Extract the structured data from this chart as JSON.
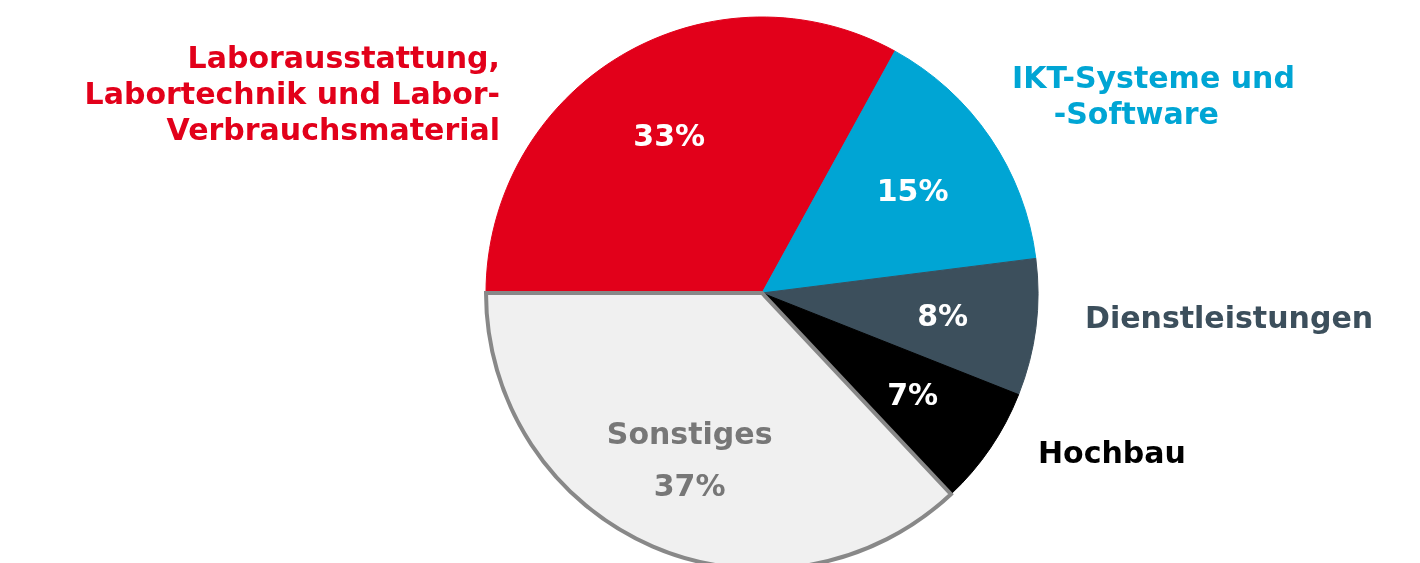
{
  "chart_data": {
    "type": "pie",
    "categories": [
      "Laborausstattung,\nLabortechnik und Labor-\nVerbrauchsmaterial",
      "IKT-Systeme und\n    -Software",
      "Dienstleistungen",
      "Hochbau",
      "Sonstiges"
    ],
    "values": [
      33,
      15,
      8,
      7,
      37
    ],
    "value_labels": [
      "33%",
      "15%",
      "8%",
      "7%",
      "37%"
    ],
    "colors": [
      "#e2001a",
      "#00a5d4",
      "#3c4f5c",
      "#000000",
      "#f0f0f0"
    ],
    "legend": false
  }
}
